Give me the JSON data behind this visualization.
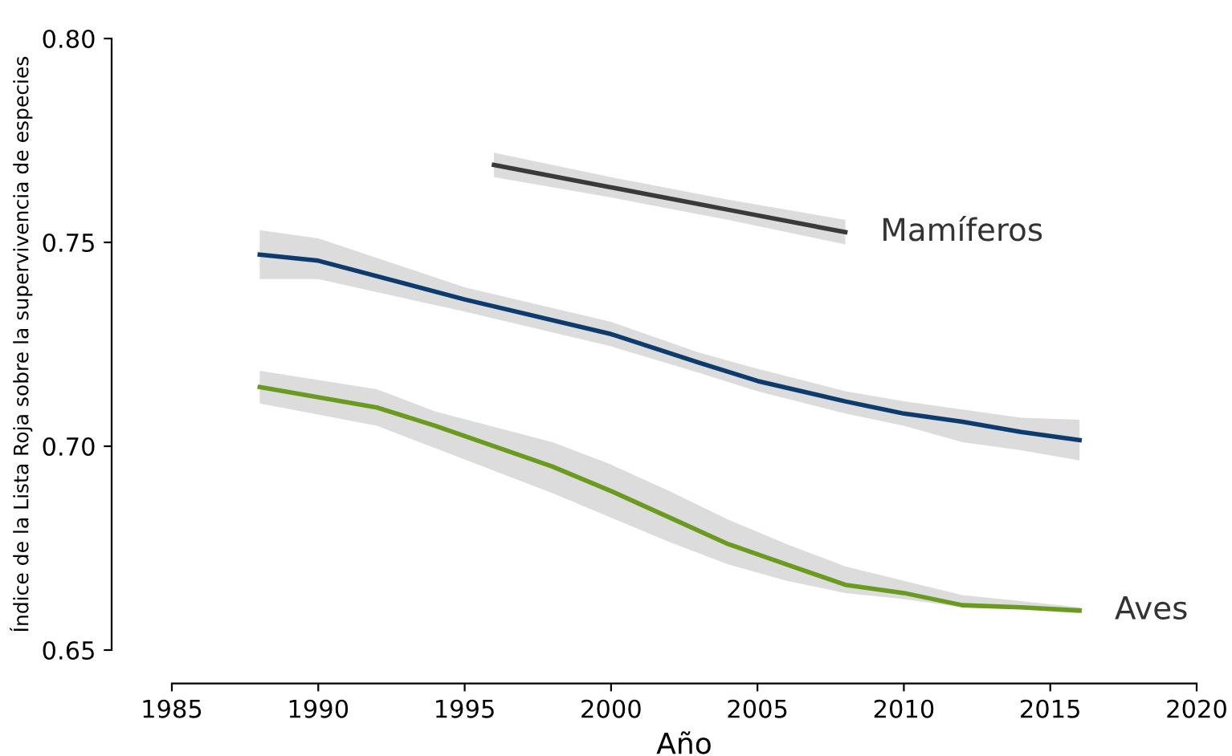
{
  "chart_data": {
    "type": "line",
    "xlabel": "Año",
    "ylabel": "Índice de la Lista Roja sobre la supervivencia de especies",
    "xlim": [
      1985,
      2020
    ],
    "xticks": [
      1985,
      1990,
      1995,
      2000,
      2005,
      2010,
      2015,
      2020
    ],
    "ylim": [
      0.65,
      0.8
    ],
    "yticks": [
      {
        "value": 0.65,
        "label": "0.65"
      },
      {
        "value": 0.7,
        "label": "0.70"
      },
      {
        "value": 0.75,
        "label": "0.75"
      },
      {
        "value": 0.8,
        "label": "0.80"
      }
    ],
    "grid": false,
    "legend": false,
    "marker": "none",
    "line_style": "solid",
    "series": [
      {
        "name": "Mamíferos",
        "color": "#3a3a3a",
        "x": [
          1996,
          2000,
          2004,
          2008
        ],
        "values": [
          0.769,
          0.7635,
          0.758,
          0.7525
        ],
        "lower": [
          0.766,
          0.761,
          0.7555,
          0.7495
        ],
        "upper": [
          0.772,
          0.766,
          0.7605,
          0.7555
        ]
      },
      {
        "color": "#0d3b6e",
        "x": [
          1988,
          1990,
          1995,
          2000,
          2003,
          2005,
          2008,
          2010,
          2012,
          2014,
          2016
        ],
        "values": [
          0.747,
          0.7455,
          0.736,
          0.7275,
          0.7205,
          0.716,
          0.711,
          0.708,
          0.706,
          0.7035,
          0.7015
        ],
        "lower": [
          0.741,
          0.741,
          0.733,
          0.7245,
          0.718,
          0.7135,
          0.708,
          0.705,
          0.701,
          0.699,
          0.6965
        ],
        "upper": [
          0.753,
          0.751,
          0.739,
          0.7305,
          0.723,
          0.719,
          0.7135,
          0.711,
          0.709,
          0.707,
          0.7065
        ]
      },
      {
        "name": "Aves",
        "color": "#6a9a1f",
        "x": [
          1988,
          1992,
          1994,
          1998,
          2000,
          2002,
          2004,
          2006,
          2008,
          2010,
          2012,
          2014,
          2016
        ],
        "values": [
          0.7145,
          0.7095,
          0.705,
          0.695,
          0.689,
          0.6825,
          0.676,
          0.671,
          0.666,
          0.664,
          0.661,
          0.6605,
          0.6597
        ],
        "lower": [
          0.7105,
          0.705,
          0.6995,
          0.6885,
          0.6825,
          0.6765,
          0.671,
          0.667,
          0.664,
          0.6625,
          0.6605,
          0.66,
          0.659
        ],
        "upper": [
          0.7185,
          0.714,
          0.7085,
          0.701,
          0.6955,
          0.689,
          0.682,
          0.676,
          0.6705,
          0.667,
          0.6635,
          0.662,
          0.6605
        ]
      }
    ]
  }
}
